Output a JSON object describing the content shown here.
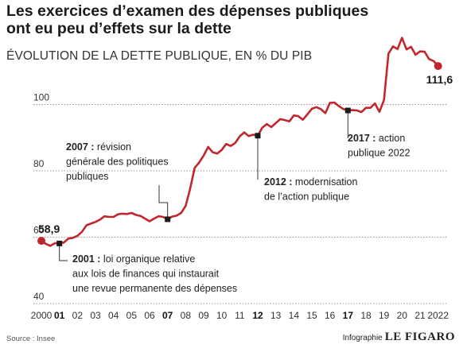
{
  "title_line1": "Les exercices d’examen des dépenses publiques",
  "title_line2": "ont eu peu d’effets sur la dette",
  "subtitle": "ÉVOLUTION DE LA DETTE PUBLIQUE, EN % DU PIB",
  "source": "Source : Insee",
  "credit_prefix": "Infographie",
  "credit_brand": "LE FIGARO",
  "colors": {
    "line": "#c0272d",
    "grid": "#9a9a9a",
    "marker": "#1a1a1a"
  },
  "chart_data": {
    "type": "line",
    "title": "ÉVOLUTION DE LA DETTE PUBLIQUE, EN % DU PIB",
    "ylim": [
      40,
      120
    ],
    "xlim": [
      2000,
      2022.5
    ],
    "yticks": [
      40,
      60,
      80,
      100
    ],
    "xticks": [
      {
        "x": 2000,
        "label": "2000",
        "bold": false
      },
      {
        "x": 2001,
        "label": "01",
        "bold": true
      },
      {
        "x": 2002,
        "label": "02",
        "bold": false
      },
      {
        "x": 2003,
        "label": "03",
        "bold": false
      },
      {
        "x": 2004,
        "label": "04",
        "bold": false
      },
      {
        "x": 2005,
        "label": "05",
        "bold": false
      },
      {
        "x": 2006,
        "label": "06",
        "bold": false
      },
      {
        "x": 2007,
        "label": "07",
        "bold": true
      },
      {
        "x": 2008,
        "label": "08",
        "bold": false
      },
      {
        "x": 2009,
        "label": "09",
        "bold": false
      },
      {
        "x": 2010,
        "label": "10",
        "bold": false
      },
      {
        "x": 2011,
        "label": "11",
        "bold": false
      },
      {
        "x": 2012,
        "label": "12",
        "bold": true
      },
      {
        "x": 2013,
        "label": "13",
        "bold": false
      },
      {
        "x": 2014,
        "label": "14",
        "bold": false
      },
      {
        "x": 2015,
        "label": "15",
        "bold": false
      },
      {
        "x": 2016,
        "label": "16",
        "bold": false
      },
      {
        "x": 2017,
        "label": "17",
        "bold": true
      },
      {
        "x": 2018,
        "label": "18",
        "bold": false
      },
      {
        "x": 2019,
        "label": "19",
        "bold": false
      },
      {
        "x": 2020,
        "label": "20",
        "bold": false
      },
      {
        "x": 2021,
        "label": "21",
        "bold": false
      },
      {
        "x": 2022,
        "label": "2022",
        "bold": false
      }
    ],
    "grid": true,
    "series": [
      {
        "x": [
          2000,
          2000.25,
          2000.5,
          2000.75,
          2001,
          2001.25,
          2001.5,
          2001.75,
          2002,
          2002.25,
          2002.5,
          2002.75,
          2003,
          2003.25,
          2003.5,
          2003.75,
          2004,
          2004.25,
          2004.5,
          2004.75,
          2005,
          2005.25,
          2005.5,
          2005.75,
          2006,
          2006.25,
          2006.5,
          2006.75,
          2007,
          2007.25,
          2007.5,
          2007.75,
          2008,
          2008.25,
          2008.5,
          2008.75,
          2009,
          2009.25,
          2009.5,
          2009.75,
          2010,
          2010.25,
          2010.5,
          2010.75,
          2011,
          2011.25,
          2011.5,
          2011.75,
          2012,
          2012.25,
          2012.5,
          2012.75,
          2013,
          2013.25,
          2013.5,
          2013.75,
          2014,
          2014.25,
          2014.5,
          2014.75,
          2015,
          2015.25,
          2015.5,
          2015.75,
          2016,
          2016.25,
          2016.5,
          2016.75,
          2017,
          2017.25,
          2017.5,
          2017.75,
          2018,
          2018.25,
          2018.5,
          2018.75,
          2019,
          2019.25,
          2019.5,
          2019.75,
          2020,
          2020.25,
          2020.5,
          2020.75,
          2021,
          2021.25,
          2021.5,
          2021.75,
          2022
        ],
        "values": [
          58.9,
          58.0,
          57.4,
          58.2,
          58.1,
          58.4,
          59.6,
          59.8,
          60.4,
          61.6,
          63.6,
          64.1,
          64.6,
          65.3,
          66.3,
          66.1,
          66.1,
          66.9,
          67.1,
          67.0,
          67.3,
          66.7,
          66.4,
          65.6,
          64.8,
          65.6,
          66.3,
          66.1,
          65.4,
          66.2,
          66.5,
          67.3,
          69.4,
          74.6,
          80.9,
          82.5,
          84.6,
          87.2,
          85.6,
          85.2,
          86.3,
          88.1,
          87.5,
          88.4,
          90.4,
          91.6,
          90.5,
          90.9,
          90.6,
          93.0,
          94.1,
          93.2,
          94.4,
          95.6,
          95.3,
          94.9,
          96.7,
          96.5,
          95.4,
          97.0,
          98.7,
          99.2,
          98.6,
          97.4,
          100.5,
          100.6,
          99.5,
          98.6,
          98.2,
          98.3,
          98.2,
          97.7,
          99.0,
          99.0,
          100.3,
          97.8,
          101.4,
          115.3,
          117.5,
          116.7,
          120.1,
          116.6,
          117.4,
          115.0,
          116.0,
          115.9,
          113.7,
          113.1,
          111.6
        ]
      }
    ],
    "start_label": "58,9",
    "end_label": "111,6",
    "annotations": [
      {
        "x": 2001,
        "y": 58.1,
        "bold": "2001 :",
        "lines": [
          "loi organique relative",
          "aux lois de finances qui instaurait",
          "une revue permanente des dépenses"
        ]
      },
      {
        "x": 2007,
        "y": 65.4,
        "bold": "2007 :",
        "lines": [
          "révision",
          "générale des politiques",
          "publiques"
        ]
      },
      {
        "x": 2012,
        "y": 90.6,
        "bold": "2012 :",
        "lines": [
          "modernisation",
          "de l’action publique"
        ]
      },
      {
        "x": 2017,
        "y": 98.2,
        "bold": "2017 :",
        "lines": [
          "action",
          "publique 2022"
        ]
      }
    ]
  }
}
